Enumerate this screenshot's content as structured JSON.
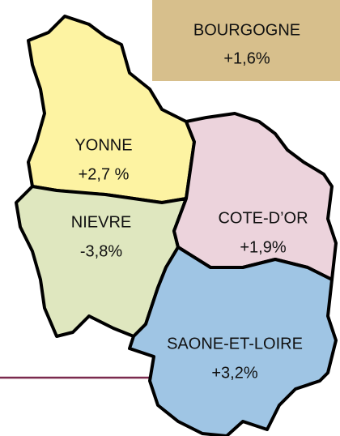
{
  "header": {
    "name": "BOURGOGNE",
    "value": "+1,6%",
    "color": "#d7bf8c"
  },
  "regions": [
    {
      "name": "YONNE",
      "value": "+2,7 %",
      "color": "#fdf3a2"
    },
    {
      "name": "NIEVRE",
      "value": "-3,8%",
      "color": "#dfe7bf"
    },
    {
      "name": "COTE-D’OR",
      "value": "+1,9%",
      "color": "#ecd3dc"
    },
    {
      "name": "SAONE-ET-LOIRE",
      "value": "+3,2%",
      "color": "#9fc5e4"
    }
  ]
}
